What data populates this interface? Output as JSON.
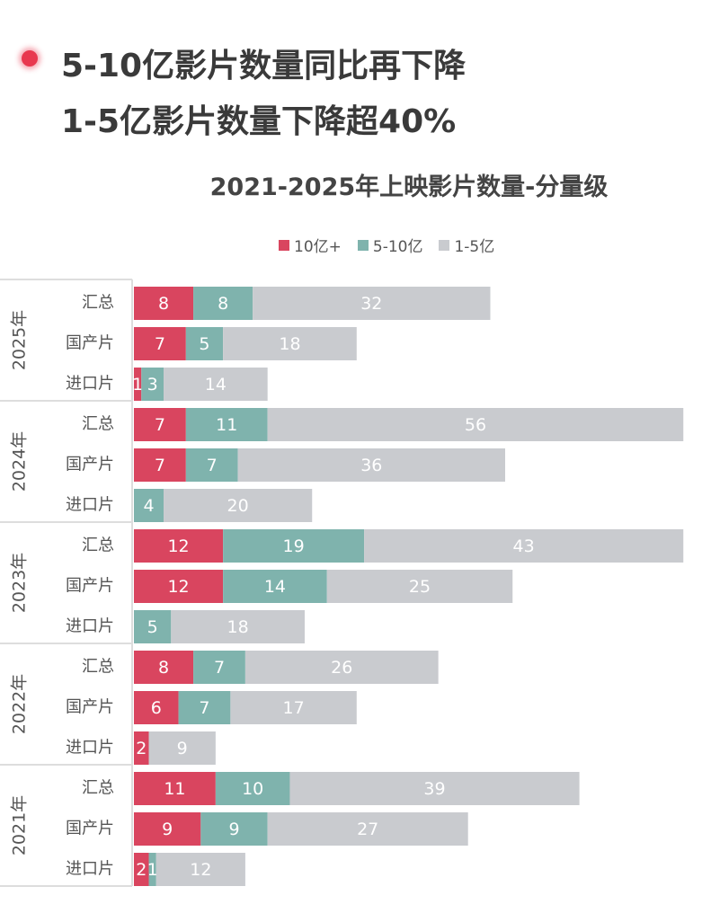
{
  "headline": {
    "bullet_color": "#e8384f",
    "line1": "5-10亿影片数量同比再下降",
    "line2": "1-5亿影片数量下降超40%"
  },
  "chart_data": {
    "type": "bar",
    "orientation": "horizontal",
    "stacked": true,
    "title": "2021-2025年上映影片数量-分量级",
    "legend_position": "top",
    "grid": false,
    "series": [
      {
        "name": "10亿+",
        "color": "#d9455f"
      },
      {
        "name": "5-10亿",
        "color": "#7fb3ad"
      },
      {
        "name": "1-5亿",
        "color": "#c9cbcf"
      }
    ],
    "groups": [
      {
        "year": "2025年",
        "rows": [
          {
            "category": "汇总",
            "values": [
              8,
              8,
              32
            ]
          },
          {
            "category": "国产片",
            "values": [
              7,
              5,
              18
            ]
          },
          {
            "category": "进口片",
            "values": [
              1,
              3,
              14
            ]
          }
        ]
      },
      {
        "year": "2024年",
        "rows": [
          {
            "category": "汇总",
            "values": [
              7,
              11,
              56
            ]
          },
          {
            "category": "国产片",
            "values": [
              7,
              7,
              36
            ]
          },
          {
            "category": "进口片",
            "values": [
              0,
              4,
              20
            ]
          }
        ]
      },
      {
        "year": "2023年",
        "rows": [
          {
            "category": "汇总",
            "values": [
              12,
              19,
              43
            ]
          },
          {
            "category": "国产片",
            "values": [
              12,
              14,
              25
            ]
          },
          {
            "category": "进口片",
            "values": [
              0,
              5,
              18
            ]
          }
        ]
      },
      {
        "year": "2022年",
        "rows": [
          {
            "category": "汇总",
            "values": [
              8,
              7,
              26
            ]
          },
          {
            "category": "国产片",
            "values": [
              6,
              7,
              17
            ]
          },
          {
            "category": "进口片",
            "values": [
              2,
              0,
              9
            ]
          }
        ]
      },
      {
        "year": "2021年",
        "rows": [
          {
            "category": "汇总",
            "values": [
              11,
              10,
              39
            ]
          },
          {
            "category": "国产片",
            "values": [
              9,
              9,
              27
            ]
          },
          {
            "category": "进口片",
            "values": [
              2,
              1,
              12
            ]
          }
        ]
      }
    ]
  }
}
